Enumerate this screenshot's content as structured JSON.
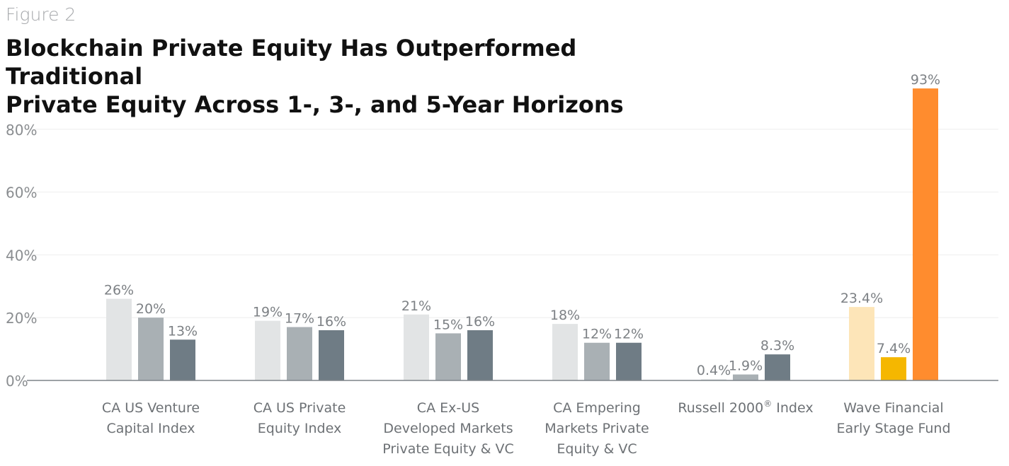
{
  "figure_label": "Figure 2",
  "chart_data": {
    "type": "bar",
    "title": "Blockchain Private Equity Has Outperformed Traditional Private Equity Across 1-, 3-, and 5-Year Horizons",
    "title_lines": [
      "Blockchain Private Equity Has Outperformed Traditional",
      "Private Equity Across 1-, 3-, and 5-Year Horizons"
    ],
    "xlabel": "",
    "ylabel": "",
    "ylim": [
      0,
      93
    ],
    "yticks": [
      0,
      20,
      40,
      60,
      80
    ],
    "ytick_labels": [
      "0%",
      "20%",
      "40%",
      "60%",
      "80%"
    ],
    "grid": true,
    "categories": [
      {
        "label_lines": [
          "CA US Venture",
          "Capital Index"
        ],
        "sup": ""
      },
      {
        "label_lines": [
          "CA US Private",
          "Equity Index"
        ],
        "sup": ""
      },
      {
        "label_lines": [
          "CA Ex-US",
          "Developed Markets",
          "Private Equity & VC"
        ],
        "sup": ""
      },
      {
        "label_lines": [
          "CA Empering",
          "Markets Private",
          "Equity & VC"
        ],
        "sup": ""
      },
      {
        "label_lines": [
          "Russell 2000"
        ],
        "sup": "®",
        "label_suffix": " Index"
      },
      {
        "label_lines": [
          "Wave Financial",
          "Early Stage Fund"
        ],
        "sup": ""
      }
    ],
    "series": [
      {
        "values": [
          26,
          19,
          21,
          18,
          0.4,
          23.4
        ],
        "labels": [
          "26%",
          "19%",
          "21%",
          "18%",
          "0.4%",
          "23.4%"
        ]
      },
      {
        "values": [
          20,
          17,
          15,
          12,
          1.9,
          7.4
        ],
        "labels": [
          "20%",
          "17%",
          "15%",
          "12%",
          "1.9%",
          "7.4%"
        ]
      },
      {
        "values": [
          13,
          16,
          16,
          12,
          8.3,
          93
        ],
        "labels": [
          "13%",
          "16%",
          "16%",
          "12%",
          "8.3%",
          "93%"
        ]
      }
    ],
    "colors": {
      "default": [
        "#e2e4e5",
        "#a9b0b4",
        "#6f7c85"
      ],
      "highlight": [
        "#fde5b8",
        "#f5b700",
        "#ff8c2e"
      ],
      "gridline": "#eeeeee",
      "axis": "#7d8489"
    },
    "highlight_category_index": 5
  }
}
